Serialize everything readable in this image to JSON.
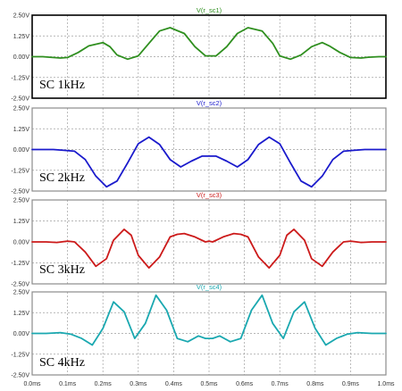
{
  "chart_data": [
    {
      "type": "line",
      "title": "V(r_sc1)",
      "label": "SC 1kHz",
      "color": "#2f8f1f",
      "ylim": [
        -2.5,
        2.5
      ],
      "yticks": [
        "2.50V",
        "1.25V",
        "0.00V",
        "-1.25V",
        "-2.50V"
      ],
      "series": [
        {
          "x": [
            0,
            0.03,
            0.05,
            0.08,
            0.1,
            0.13,
            0.16,
            0.2,
            0.22,
            0.24,
            0.27,
            0.3,
            0.33,
            0.36,
            0.39,
            0.43,
            0.46,
            0.49,
            0.52,
            0.55,
            0.58,
            0.61,
            0.65,
            0.68,
            0.7,
            0.73,
            0.76,
            0.79,
            0.82,
            0.84,
            0.87,
            0.9,
            0.93,
            0.95,
            0.98,
            1.0
          ],
          "y": [
            0,
            0.0,
            -0.03,
            -0.08,
            -0.05,
            0.25,
            0.65,
            0.85,
            0.6,
            0.1,
            -0.15,
            0.05,
            0.8,
            1.55,
            1.75,
            1.4,
            0.6,
            0.05,
            0.05,
            0.6,
            1.4,
            1.75,
            1.55,
            0.8,
            0.05,
            -0.15,
            0.1,
            0.6,
            0.85,
            0.65,
            0.25,
            -0.05,
            -0.08,
            -0.03,
            0.0,
            0
          ]
        }
      ]
    },
    {
      "type": "line",
      "title": "V(r_sc2)",
      "label": "SC 2kHz",
      "color": "#1a1acc",
      "ylim": [
        -2.5,
        2.5
      ],
      "yticks": [
        "2.50V",
        "1.25V",
        "0.00V",
        "-1.25V",
        "-2.50V"
      ],
      "series": [
        {
          "x": [
            0,
            0.03,
            0.06,
            0.09,
            0.12,
            0.15,
            0.18,
            0.21,
            0.24,
            0.27,
            0.3,
            0.33,
            0.36,
            0.39,
            0.42,
            0.45,
            0.48,
            0.52,
            0.55,
            0.58,
            0.61,
            0.64,
            0.67,
            0.7,
            0.73,
            0.76,
            0.79,
            0.82,
            0.85,
            0.88,
            0.91,
            0.94,
            0.97,
            1.0
          ],
          "y": [
            0,
            0.0,
            0.0,
            -0.05,
            -0.1,
            -0.6,
            -1.6,
            -2.25,
            -1.9,
            -0.8,
            0.35,
            0.75,
            0.3,
            -0.6,
            -1.05,
            -0.7,
            -0.4,
            -0.4,
            -0.7,
            -1.05,
            -0.6,
            0.3,
            0.75,
            0.35,
            -0.8,
            -1.9,
            -2.25,
            -1.6,
            -0.6,
            -0.1,
            -0.05,
            0.0,
            0.0,
            0
          ]
        }
      ]
    },
    {
      "type": "line",
      "title": "V(r_sc3)",
      "label": "SC 3kHz",
      "color": "#cc1a1a",
      "ylim": [
        -2.5,
        2.5
      ],
      "yticks": [
        "2.50V",
        "1.25V",
        "0.00V",
        "-1.25V",
        "-2.50V"
      ],
      "series": [
        {
          "x": [
            0,
            0.04,
            0.07,
            0.1,
            0.12,
            0.15,
            0.18,
            0.21,
            0.23,
            0.26,
            0.28,
            0.3,
            0.33,
            0.36,
            0.39,
            0.41,
            0.43,
            0.46,
            0.49,
            0.5,
            0.51,
            0.54,
            0.57,
            0.59,
            0.61,
            0.64,
            0.67,
            0.7,
            0.72,
            0.74,
            0.77,
            0.79,
            0.82,
            0.85,
            0.88,
            0.9,
            0.93,
            0.96,
            1.0
          ],
          "y": [
            0,
            0.0,
            -0.03,
            0.05,
            0.0,
            -0.6,
            -1.45,
            -1.0,
            0.1,
            0.75,
            0.4,
            -0.8,
            -1.55,
            -0.9,
            0.3,
            0.45,
            0.5,
            0.3,
            0.0,
            0.05,
            0.0,
            0.3,
            0.5,
            0.45,
            0.3,
            -0.9,
            -1.55,
            -0.8,
            0.4,
            0.75,
            0.1,
            -1.0,
            -1.45,
            -0.6,
            0.0,
            0.05,
            -0.03,
            0.0,
            0
          ]
        }
      ]
    },
    {
      "type": "line",
      "title": "V(r_sc4)",
      "label": "SC 4kHz",
      "color": "#1aa8b0",
      "ylim": [
        -2.5,
        2.5
      ],
      "yticks": [
        "2.50V",
        "1.25V",
        "0.00V",
        "-1.25V",
        "-2.50V"
      ],
      "series": [
        {
          "x": [
            0,
            0.04,
            0.08,
            0.11,
            0.14,
            0.17,
            0.2,
            0.23,
            0.26,
            0.29,
            0.32,
            0.35,
            0.38,
            0.41,
            0.44,
            0.47,
            0.49,
            0.51,
            0.53,
            0.56,
            0.59,
            0.62,
            0.65,
            0.68,
            0.71,
            0.74,
            0.77,
            0.8,
            0.83,
            0.86,
            0.89,
            0.92,
            0.96,
            1.0
          ],
          "y": [
            0,
            0.0,
            0.05,
            -0.05,
            -0.3,
            -0.7,
            0.3,
            1.9,
            1.3,
            -0.3,
            0.6,
            2.3,
            1.4,
            -0.3,
            -0.5,
            -0.15,
            -0.3,
            -0.3,
            -0.15,
            -0.5,
            -0.3,
            1.4,
            2.3,
            0.6,
            -0.3,
            1.3,
            1.9,
            0.3,
            -0.7,
            -0.3,
            -0.05,
            0.05,
            0.0,
            0
          ]
        }
      ]
    }
  ],
  "x_axis": {
    "xlim": [
      0,
      1.0
    ],
    "ticks": [
      {
        "v": 0.0,
        "label": "0.0ms"
      },
      {
        "v": 0.1,
        "label": "0.1ms"
      },
      {
        "v": 0.2,
        "label": "0.2ms"
      },
      {
        "v": 0.3,
        "label": "0.3ms"
      },
      {
        "v": 0.4,
        "label": "0.4ms"
      },
      {
        "v": 0.5,
        "label": "0.5ms"
      },
      {
        "v": 0.6,
        "label": "0.6ms"
      },
      {
        "v": 0.7,
        "label": "0.7ms"
      },
      {
        "v": 0.8,
        "label": "0.8ms"
      },
      {
        "v": 0.9,
        "label": "0.9ms"
      },
      {
        "v": 1.0,
        "label": "1.0ms"
      }
    ]
  },
  "colors": {
    "frame_active": "#000000",
    "frame_inactive": "#8c8c8c",
    "grid": "#a0a0a0"
  }
}
